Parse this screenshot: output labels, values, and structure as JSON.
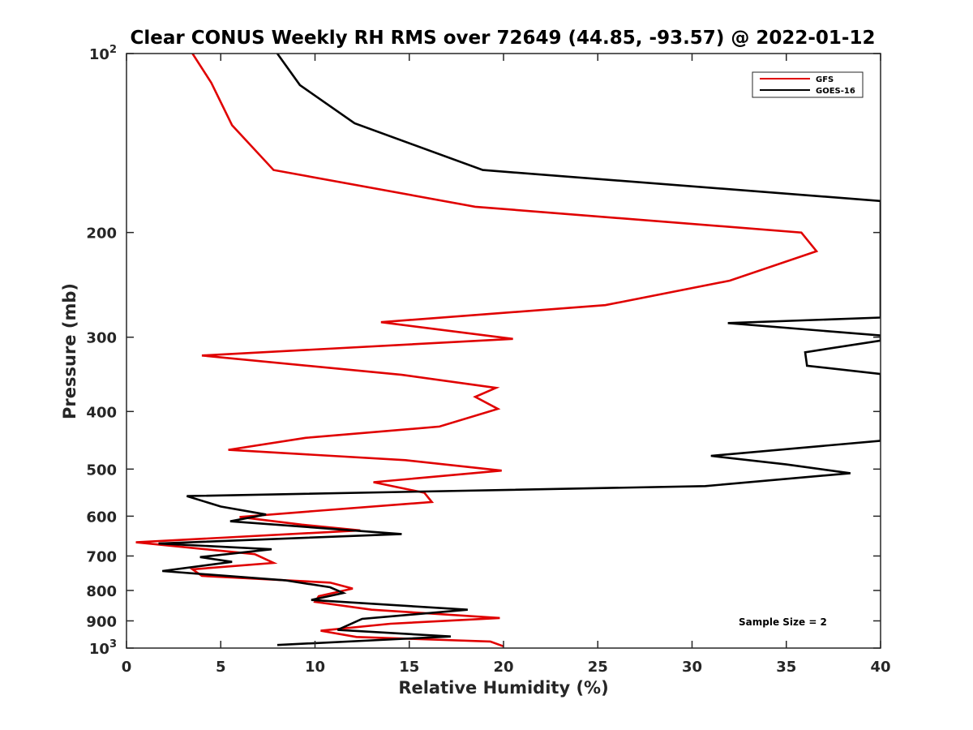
{
  "chart_data": {
    "type": "line",
    "title": "Clear CONUS Weekly RH RMS over 72649 (44.85, -93.57) @ 2022-01-12",
    "xlabel": "Relative Humidity (%)",
    "ylabel": "Pressure (mb)",
    "xlim": [
      0,
      40
    ],
    "ylim": [
      1000,
      100
    ],
    "y_scale": "log",
    "y_reversed": true,
    "x_ticks": [
      "0",
      "5",
      "10",
      "15",
      "20",
      "25",
      "30",
      "35",
      "40"
    ],
    "y_ticks": [
      {
        "value": 100,
        "base": "10",
        "exp": "2"
      },
      {
        "value": 200,
        "base": "200",
        "exp": ""
      },
      {
        "value": 300,
        "base": "300",
        "exp": ""
      },
      {
        "value": 400,
        "base": "400",
        "exp": ""
      },
      {
        "value": 500,
        "base": "500",
        "exp": ""
      },
      {
        "value": 600,
        "base": "600",
        "exp": ""
      },
      {
        "value": 700,
        "base": "700",
        "exp": ""
      },
      {
        "value": 800,
        "base": "800",
        "exp": ""
      },
      {
        "value": 900,
        "base": "900",
        "exp": ""
      },
      {
        "value": 1000,
        "base": "10",
        "exp": "3"
      }
    ],
    "legend_position": "top-right",
    "annotation": "Sample Size = 2",
    "series": [
      {
        "name": "GFS",
        "color": "#e00000",
        "points": [
          [
            3.5,
            100
          ],
          [
            4.5,
            112
          ],
          [
            5.6,
            132
          ],
          [
            7.8,
            157
          ],
          [
            18.5,
            181
          ],
          [
            35.8,
            200
          ],
          [
            36.6,
            215
          ],
          [
            32.0,
            241
          ],
          [
            25.4,
            265
          ],
          [
            13.5,
            283
          ],
          [
            20.5,
            302
          ],
          [
            4.0,
            322
          ],
          [
            14.6,
            347
          ],
          [
            19.6,
            365
          ],
          [
            18.5,
            378
          ],
          [
            19.7,
            396
          ],
          [
            16.6,
            424
          ],
          [
            9.5,
            443
          ],
          [
            5.4,
            464
          ],
          [
            14.8,
            483
          ],
          [
            19.9,
            503
          ],
          [
            13.1,
            526
          ],
          [
            15.8,
            548
          ],
          [
            16.2,
            568
          ],
          [
            10.0,
            588
          ],
          [
            6.0,
            602
          ],
          [
            9.3,
            620
          ],
          [
            12.4,
            634
          ],
          [
            0.5,
            664
          ],
          [
            6.8,
            695
          ],
          [
            7.8,
            719
          ],
          [
            3.5,
            737
          ],
          [
            4.0,
            756
          ],
          [
            10.8,
            776
          ],
          [
            12.0,
            794
          ],
          [
            10.2,
            818
          ],
          [
            10.0,
            836
          ],
          [
            13.0,
            862
          ],
          [
            19.8,
            890
          ],
          [
            14.0,
            910
          ],
          [
            10.3,
            935
          ],
          [
            12.2,
            958
          ],
          [
            19.3,
            975
          ],
          [
            20.0,
            993
          ]
        ]
      },
      {
        "name": "GOES-16",
        "color": "#000000",
        "points": [
          [
            8.0,
            100
          ],
          [
            9.2,
            113
          ],
          [
            12.1,
            131
          ],
          [
            18.9,
            157
          ],
          [
            40.0,
            177
          ],
          [
            40.0,
            278
          ],
          [
            31.9,
            284
          ],
          [
            40.0,
            298
          ],
          [
            40.0,
            304
          ],
          [
            36.0,
            318
          ],
          [
            36.1,
            335
          ],
          [
            40.0,
            346
          ],
          [
            40.0,
            448
          ],
          [
            31.0,
            475
          ],
          [
            35.0,
            491
          ],
          [
            38.4,
            508
          ],
          [
            30.7,
            534
          ],
          [
            3.2,
            555
          ],
          [
            5.0,
            578
          ],
          [
            7.4,
            596
          ],
          [
            5.5,
            612
          ],
          [
            14.6,
            643
          ],
          [
            1.7,
            667
          ],
          [
            7.7,
            682
          ],
          [
            3.9,
            703
          ],
          [
            5.6,
            716
          ],
          [
            1.9,
            742
          ],
          [
            8.4,
            769
          ],
          [
            10.8,
            790
          ],
          [
            11.5,
            808
          ],
          [
            9.8,
            830
          ],
          [
            18.1,
            862
          ],
          [
            12.5,
            893
          ],
          [
            11.2,
            932
          ],
          [
            17.2,
            956
          ],
          [
            8.0,
            988
          ]
        ]
      }
    ]
  }
}
